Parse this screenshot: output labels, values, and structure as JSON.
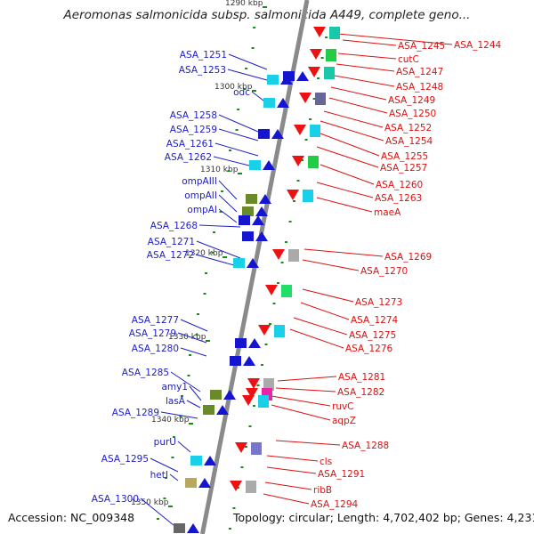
{
  "title": "Aeromonas salmonicida subsp. salmonicida A449, complete geno...",
  "footer": {
    "accession": "Accession: NC_009348",
    "topology": "Topology: circular; Length: 4,702,402 bp; Genes: 4,231"
  },
  "colors": {
    "backbone": "#8a8a8a",
    "left_label": "#2020c8",
    "right_label": "#dd1111",
    "left_gene": "#1515d0",
    "right_gene": "#ee1111",
    "tick": "#1a8a1a"
  },
  "kbp_markers": [
    "1290 kbp",
    "1300 kbp",
    "1310 kbp",
    "1320 kbp",
    "1330 kbp",
    "1340 kbp",
    "1350 kbp"
  ],
  "left_labels": [
    "ASA_1251",
    "ASA_1253",
    "odc",
    "ASA_1258",
    "ASA_1259",
    "ASA_1261",
    "ASA_1262",
    "ompAIII",
    "ompAII",
    "ompAI",
    "ASA_1268",
    "ASA_1271",
    "ASA_1272",
    "ASA_1277",
    "ASA_1279",
    "ASA_1280",
    "ASA_1285",
    "amy1",
    "lasA",
    "ASA_1289",
    "purU",
    "ASA_1295",
    "hetI",
    "ASA_1300"
  ],
  "right_labels": [
    "ASA_1244",
    "ASA_1245",
    "cutC",
    "ASA_1247",
    "ASA_1248",
    "ASA_1249",
    "ASA_1250",
    "ASA_1252",
    "ASA_1254",
    "ASA_1255",
    "ASA_1257",
    "ASA_1260",
    "ASA_1263",
    "maeA",
    "ASA_1269",
    "ASA_1270",
    "ASA_1273",
    "ASA_1274",
    "ASA_1275",
    "ASA_1276",
    "ASA_1281",
    "ASA_1282",
    "ruvC",
    "aqpZ",
    "ASA_1288",
    "cls",
    "ASA_1291",
    "ribB",
    "ASA_1294"
  ]
}
